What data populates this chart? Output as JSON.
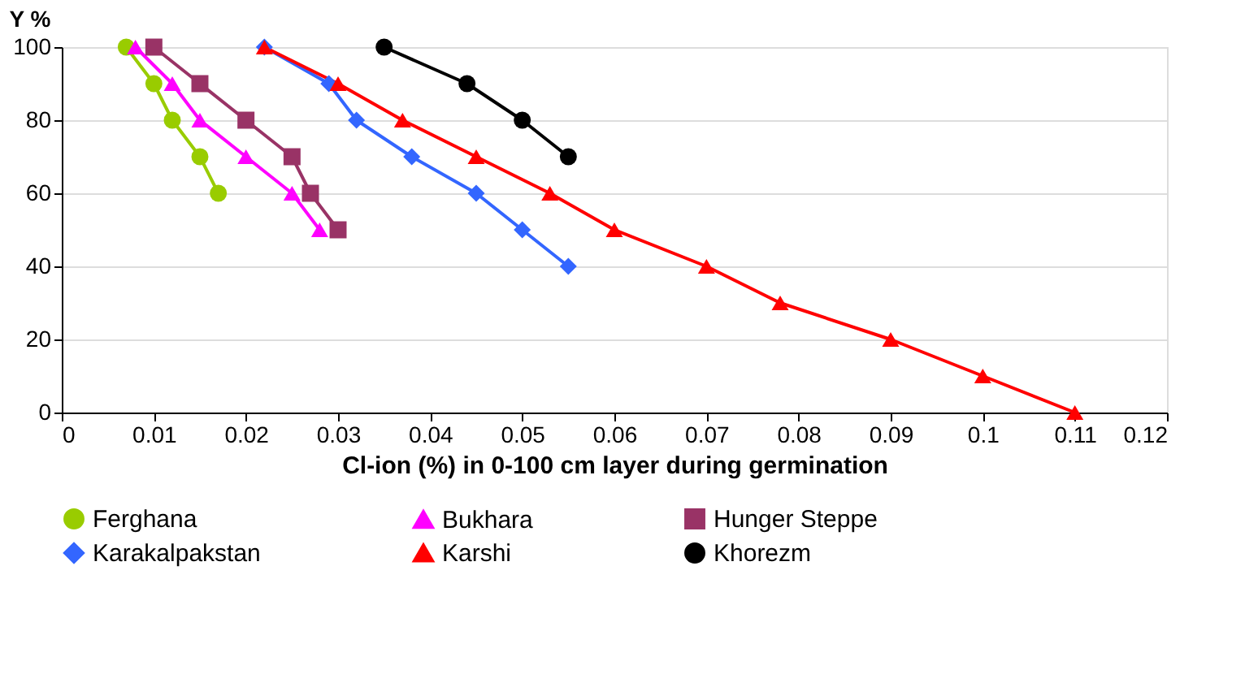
{
  "chart_data": {
    "type": "line",
    "xlabel": "Cl-ion (%) in 0-100 cm layer during germination",
    "ylabel": "Y %",
    "xlim": [
      0,
      0.12
    ],
    "xticks": [
      0,
      0.01,
      0.02,
      0.03,
      0.04,
      0.05,
      0.06,
      0.07,
      0.08,
      0.09,
      0.1,
      0.11,
      0.12
    ],
    "ylim": [
      0,
      100
    ],
    "yticks": [
      0,
      20,
      40,
      60,
      80,
      100
    ],
    "grid": "y",
    "legend": "bottom",
    "line_style": "solid",
    "series": [
      {
        "name": "Ferghana",
        "color": "#99cc00",
        "marker": "circle",
        "x": [
          0.007,
          0.01,
          0.012,
          0.015,
          0.017
        ],
        "values": [
          100,
          90,
          80,
          70,
          60
        ]
      },
      {
        "name": "Bukhara",
        "color": "#ff00ff",
        "marker": "triangle",
        "x": [
          0.008,
          0.012,
          0.015,
          0.02,
          0.025,
          0.028
        ],
        "values": [
          100,
          90,
          80,
          70,
          60,
          50
        ]
      },
      {
        "name": "Hunger Steppe",
        "color": "#993366",
        "marker": "square",
        "x": [
          0.01,
          0.015,
          0.02,
          0.025,
          0.027,
          0.03
        ],
        "values": [
          100,
          90,
          80,
          70,
          60,
          50
        ]
      },
      {
        "name": "Karakalpakstan",
        "color": "#3366ff",
        "marker": "diamond",
        "x": [
          0.022,
          0.029,
          0.032,
          0.038,
          0.045,
          0.05,
          0.055
        ],
        "values": [
          100,
          90,
          80,
          70,
          60,
          50,
          40
        ]
      },
      {
        "name": "Karshi",
        "color": "#ff0000",
        "marker": "triangle",
        "x": [
          0.022,
          0.03,
          0.037,
          0.045,
          0.053,
          0.06,
          0.07,
          0.078,
          0.09,
          0.1,
          0.11
        ],
        "values": [
          100,
          90,
          80,
          70,
          60,
          50,
          40,
          30,
          20,
          10,
          0
        ]
      },
      {
        "name": "Khorezm",
        "color": "#000000",
        "marker": "circle",
        "x": [
          0.035,
          0.044,
          0.05,
          0.055
        ],
        "values": [
          100,
          90,
          80,
          70
        ]
      }
    ]
  }
}
